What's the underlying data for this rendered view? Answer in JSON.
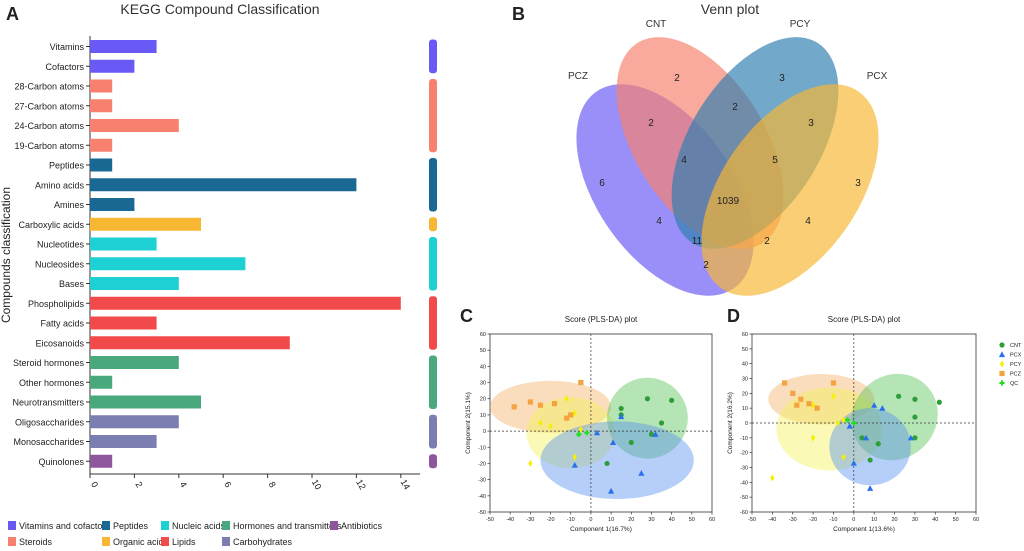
{
  "panels": {
    "a": "A",
    "b": "B",
    "c": "C",
    "d": "D"
  },
  "chart_data": [
    {
      "type": "bar",
      "orientation": "horizontal",
      "title": "KEGG Compound Classification",
      "ylabel": "Compounds classification",
      "xlabel": "",
      "xlim": [
        0,
        15
      ],
      "xticks": [
        "0",
        "2",
        "4",
        "6",
        "8",
        "10",
        "12",
        "14"
      ],
      "categories": [
        "Vitamins",
        "Cofactors",
        "28-Carbon atoms",
        "27-Carbon atoms",
        "24-Carbon atoms",
        "19-Carbon atoms",
        "Peptides",
        "Amino acids",
        "Amines",
        "Carboxylic acids",
        "Nucleotides",
        "Nucleosides",
        "Bases",
        "Phospholipids",
        "Fatty acids",
        "Eicosanoids",
        "Steroid hormones",
        "Other hormones",
        "Neurotransmitters",
        "Oligosaccharides",
        "Monosaccharides",
        "Quinolones"
      ],
      "values": [
        3,
        2,
        1,
        1,
        4,
        1,
        1,
        12,
        2,
        5,
        3,
        7,
        4,
        14,
        3,
        9,
        4,
        1,
        5,
        4,
        3,
        1
      ],
      "groups": [
        0,
        0,
        1,
        1,
        1,
        1,
        2,
        2,
        2,
        3,
        4,
        4,
        4,
        5,
        5,
        5,
        6,
        6,
        6,
        7,
        7,
        8
      ],
      "legend": [
        {
          "label": "Vitamins and cofactors",
          "color": "#6a5af5"
        },
        {
          "label": "Steroids",
          "color": "#f8806e"
        },
        {
          "label": "Peptides",
          "color": "#1a6894"
        },
        {
          "label": "Organic acids",
          "color": "#f7b733"
        },
        {
          "label": "Nucleic acids",
          "color": "#1cd0d4"
        },
        {
          "label": "Lipids",
          "color": "#f24a4a"
        },
        {
          "label": "Hormones and transmitters",
          "color": "#4aa97c"
        },
        {
          "label": "Carbohydrates",
          "color": "#7a7eb0"
        },
        {
          "label": "Antibiotics",
          "color": "#8e569d"
        }
      ]
    },
    {
      "type": "venn",
      "title": "Venn plot",
      "sets": [
        {
          "name": "PCZ",
          "color": "#6a5af5"
        },
        {
          "name": "CNT",
          "color": "#f8806e"
        },
        {
          "name": "PCY",
          "color": "#2f7fb0"
        },
        {
          "name": "PCX",
          "color": "#f7b733"
        }
      ],
      "regions": [
        {
          "sets": [
            "PCZ"
          ],
          "value": "6"
        },
        {
          "sets": [
            "CNT"
          ],
          "value": "2"
        },
        {
          "sets": [
            "PCY"
          ],
          "value": "3"
        },
        {
          "sets": [
            "PCX"
          ],
          "value": "3"
        },
        {
          "sets": [
            "PCZ",
            "CNT"
          ],
          "value": "2"
        },
        {
          "sets": [
            "CNT",
            "PCY"
          ],
          "value": "2"
        },
        {
          "sets": [
            "PCY",
            "PCX"
          ],
          "value": "3"
        },
        {
          "sets": [
            "PCZ",
            "CNT",
            "PCY"
          ],
          "value": "4"
        },
        {
          "sets": [
            "CNT",
            "PCY",
            "PCX"
          ],
          "value": "5"
        },
        {
          "sets": [
            "PCZ",
            "CNT",
            "PCY",
            "PCX"
          ],
          "value": "1039"
        },
        {
          "sets": [
            "PCZ",
            "PCY"
          ],
          "value": "4"
        },
        {
          "sets": [
            "CNT",
            "PCX"
          ],
          "value": "4"
        },
        {
          "sets": [
            "PCZ",
            "PCY",
            "PCX"
          ],
          "value": "11"
        },
        {
          "sets": [
            "PCZ",
            "CNT",
            "PCX"
          ],
          "value": "2"
        },
        {
          "sets": [
            "PCZ",
            "PCX"
          ],
          "value": "2"
        }
      ]
    },
    {
      "type": "scatter",
      "title": "Score (PLS-DA) plot",
      "xlabel": "Component 1(16.7%)",
      "ylabel": "Component 2(15.1%)",
      "xlim": [
        -50,
        60
      ],
      "ylim": [
        -50,
        60
      ],
      "xticks": [
        "-50",
        "-40",
        "-30",
        "-20",
        "-10",
        "0",
        "10",
        "20",
        "30",
        "40",
        "50",
        "60"
      ],
      "yticks": [
        "-50",
        "-40",
        "-30",
        "-20",
        "-10",
        "0",
        "10",
        "20",
        "30",
        "40",
        "50",
        "60"
      ],
      "ellipses": [
        {
          "group": "PCZ",
          "cx": -20,
          "cy": 15,
          "rx": 30,
          "ry": 16,
          "rot": 0
        },
        {
          "group": "PCY",
          "cx": -10,
          "cy": -1,
          "rx": 22,
          "ry": 22,
          "rot": 0
        },
        {
          "group": "CNT",
          "cx": 28,
          "cy": 8,
          "rx": 20,
          "ry": 25,
          "rot": 40
        },
        {
          "group": "PCX",
          "cx": 13,
          "cy": -18,
          "rx": 38,
          "ry": 24,
          "rot": 0
        }
      ],
      "series": [
        {
          "name": "CNT",
          "points": [
            [
              28,
              20
            ],
            [
              40,
              19
            ],
            [
              15,
              14
            ],
            [
              35,
              5
            ],
            [
              30,
              -2
            ],
            [
              20,
              -7
            ],
            [
              8,
              -20
            ],
            [
              15,
              10
            ]
          ]
        },
        {
          "name": "PCX",
          "points": [
            [
              15,
              9
            ],
            [
              3,
              -1
            ],
            [
              11,
              -7
            ],
            [
              32,
              -2
            ],
            [
              -8,
              -21
            ],
            [
              25,
              -26
            ],
            [
              10,
              -37
            ]
          ]
        },
        {
          "name": "PCY",
          "points": [
            [
              -12,
              20
            ],
            [
              -8,
              11
            ],
            [
              -25,
              5
            ],
            [
              -20,
              3
            ],
            [
              -30,
              -20
            ],
            [
              -5,
              1
            ],
            [
              -8,
              -16
            ]
          ]
        },
        {
          "name": "PCZ",
          "points": [
            [
              -30,
              18
            ],
            [
              -25,
              16
            ],
            [
              -18,
              17
            ],
            [
              -38,
              15
            ],
            [
              -10,
              10
            ],
            [
              -5,
              30
            ],
            [
              -12,
              8
            ]
          ]
        },
        {
          "name": "QC",
          "points": [
            [
              -6,
              -2
            ],
            [
              -2,
              -1
            ]
          ]
        }
      ]
    },
    {
      "type": "scatter",
      "title": "Score (PLS-DA) plot",
      "xlabel": "Component 1(13.6%)",
      "ylabel": "Component 2(16.2%)",
      "xlim": [
        -50,
        60
      ],
      "ylim": [
        -60,
        60
      ],
      "xticks": [
        "-50",
        "-40",
        "-30",
        "-20",
        "-10",
        "0",
        "10",
        "20",
        "30",
        "40",
        "50",
        "60"
      ],
      "yticks": [
        "-60",
        "-50",
        "-40",
        "-30",
        "-20",
        "-10",
        "0",
        "10",
        "20",
        "30",
        "40",
        "50",
        "60"
      ],
      "ellipses": [
        {
          "group": "PCZ",
          "cx": -16,
          "cy": 16,
          "rx": 26,
          "ry": 17,
          "rot": 0
        },
        {
          "group": "PCY",
          "cx": -12,
          "cy": -4,
          "rx": 26,
          "ry": 28,
          "rot": 0
        },
        {
          "group": "CNT",
          "cx": 20,
          "cy": 4,
          "rx": 22,
          "ry": 28,
          "rot": 45
        },
        {
          "group": "PCX",
          "cx": 8,
          "cy": -16,
          "rx": 20,
          "ry": 26,
          "rot": 0
        }
      ],
      "series": [
        {
          "name": "CNT",
          "points": [
            [
              22,
              18
            ],
            [
              42,
              14
            ],
            [
              30,
              16
            ],
            [
              30,
              4
            ],
            [
              30,
              -10
            ],
            [
              12,
              -14
            ],
            [
              8,
              -25
            ],
            [
              4,
              -10
            ]
          ]
        },
        {
          "name": "PCX",
          "points": [
            [
              10,
              12
            ],
            [
              14,
              10
            ],
            [
              -2,
              -2
            ],
            [
              6,
              -10
            ],
            [
              28,
              -10
            ],
            [
              0,
              -27
            ],
            [
              8,
              -44
            ]
          ]
        },
        {
          "name": "PCY",
          "points": [
            [
              -10,
              18
            ],
            [
              -5,
              2
            ],
            [
              -8,
              0
            ],
            [
              -20,
              -10
            ],
            [
              -40,
              -37
            ],
            [
              -5,
              -23
            ],
            [
              -20,
              12
            ]
          ]
        },
        {
          "name": "PCZ",
          "points": [
            [
              -34,
              27
            ],
            [
              -30,
              20
            ],
            [
              -26,
              16
            ],
            [
              -22,
              13
            ],
            [
              -28,
              12
            ],
            [
              -10,
              27
            ],
            [
              -18,
              10
            ]
          ]
        },
        {
          "name": "QC",
          "points": [
            [
              -3,
              2
            ],
            [
              0,
              0
            ]
          ]
        }
      ],
      "legend": [
        {
          "name": "CNT",
          "symbol": "circle",
          "color": "#2e9e3a"
        },
        {
          "name": "PCX",
          "symbol": "triangle",
          "color": "#2a6ff0"
        },
        {
          "name": "PCY",
          "symbol": "diamond",
          "color": "#f5f000"
        },
        {
          "name": "PCZ",
          "symbol": "square",
          "color": "#f5a341"
        },
        {
          "name": "QC",
          "symbol": "plus",
          "color": "#22dd22"
        }
      ]
    }
  ]
}
